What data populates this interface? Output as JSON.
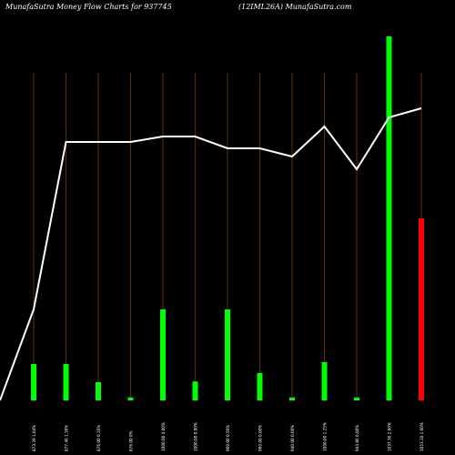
{
  "header": {
    "left": "MunafaSutra  Money Flow  Charts for 937745",
    "right": "(12IML26A) MunafaSutra.com"
  },
  "chart_data": {
    "type": "bar",
    "categories": [
      "873.39  1.04%",
      "877.40  1.36%",
      "876.00  0.16%",
      "876.00  0%",
      "1000.00  4.00%",
      "1000.00  0.00%",
      "960.00  0.50%",
      "960.00  0.00%",
      "940.00  0.00%",
      "1000.00  1.25%",
      "944.80  0.00%",
      "1037.30  2.60%",
      "1053.10  1.60%"
    ],
    "values": [
      10,
      10,
      5,
      0.8,
      25,
      5.2,
      25,
      7.5,
      0.8,
      10.5,
      0.8,
      100,
      50
    ],
    "bar_colors": [
      "#00ff00",
      "#00ff00",
      "#00ff00",
      "#00ff00",
      "#00ff00",
      "#00ff00",
      "#00ff00",
      "#00ff00",
      "#00ff00",
      "#00ff00",
      "#00ff00",
      "#00ff00",
      "#ff0000"
    ],
    "line_values": [
      100,
      284,
      284,
      284,
      290,
      290,
      277,
      277,
      268,
      301,
      254,
      311,
      321
    ],
    "bar_ylim": [
      0,
      100
    ],
    "line_ylim": [
      0,
      400
    ],
    "grid": true,
    "colors": {
      "background": "#000000",
      "up": "#00ff00",
      "down": "#ff0000",
      "line": "#ffffff",
      "grid": "#8b4513"
    }
  }
}
